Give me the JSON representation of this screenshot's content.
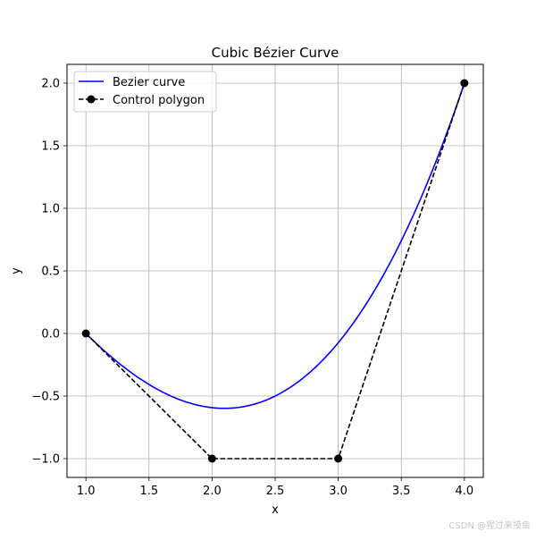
{
  "chart_data": {
    "type": "line",
    "title": "Cubic Bézier Curve",
    "xlabel": "x",
    "ylabel": "y",
    "xlim": [
      0.85,
      4.15
    ],
    "ylim": [
      -1.15,
      2.15
    ],
    "xticks": [
      1.0,
      1.5,
      2.0,
      2.5,
      3.0,
      3.5,
      4.0
    ],
    "yticks": [
      -1.0,
      -0.5,
      0.0,
      0.5,
      1.0,
      1.5,
      2.0
    ],
    "xtick_labels": [
      "1.0",
      "1.5",
      "2.0",
      "2.5",
      "3.0",
      "3.5",
      "4.0"
    ],
    "ytick_labels": [
      "−1.0",
      "−0.5",
      "0.0",
      "0.5",
      "1.0",
      "1.5",
      "2.0"
    ],
    "grid": true,
    "legend_position": "top-left",
    "control_points": [
      {
        "x": 1.0,
        "y": 0.0
      },
      {
        "x": 2.0,
        "y": -1.0
      },
      {
        "x": 3.0,
        "y": -1.0
      },
      {
        "x": 4.0,
        "y": 2.0
      }
    ],
    "series": [
      {
        "name": "Bezier curve",
        "style": "solid-line",
        "color": "#0000ff"
      },
      {
        "name": "Control polygon",
        "style": "dashed-line-with-markers",
        "color": "#000000"
      }
    ]
  },
  "watermark": "CSDN @猩过来摸鱼"
}
